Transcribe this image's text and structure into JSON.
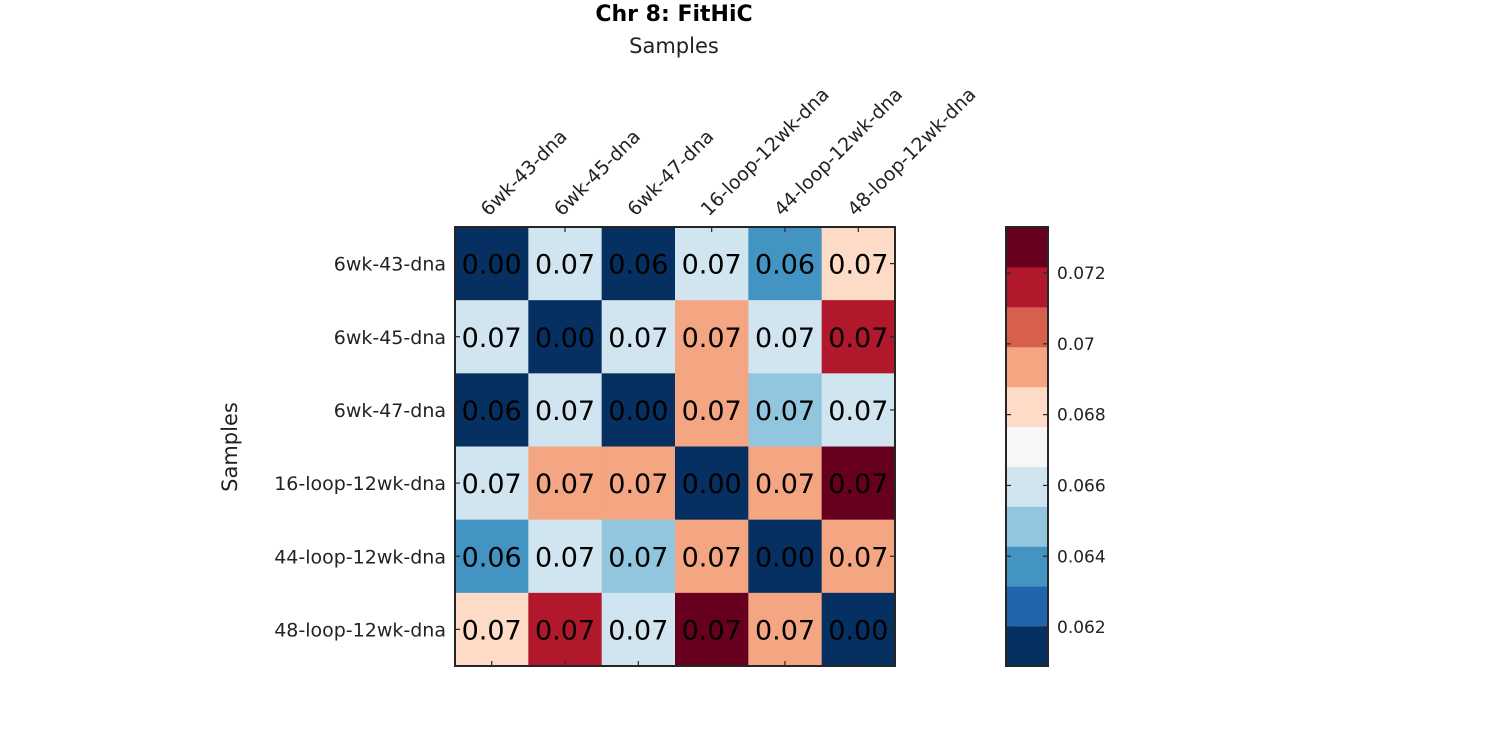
{
  "chart_data": {
    "type": "heatmap",
    "title": "Chr 8: FitHiC",
    "xlabel": "Samples",
    "ylabel": "Samples",
    "categories": [
      "6wk-43-dna",
      "6wk-45-dna",
      "6wk-47-dna",
      "16-loop-12wk-dna",
      "44-loop-12wk-dna",
      "48-loop-12wk-dna"
    ],
    "values": [
      [
        0.0,
        0.0665,
        0.061,
        0.0665,
        0.064,
        0.068
      ],
      [
        0.0665,
        0.0,
        0.066,
        0.069,
        0.066,
        0.0715
      ],
      [
        0.061,
        0.066,
        0.0,
        0.069,
        0.065,
        0.066
      ],
      [
        0.0665,
        0.069,
        0.069,
        0.0,
        0.069,
        0.073
      ],
      [
        0.064,
        0.066,
        0.065,
        0.069,
        0.0,
        0.069
      ],
      [
        0.068,
        0.0715,
        0.066,
        0.073,
        0.069,
        0.0
      ]
    ],
    "cell_labels": [
      [
        "0.00",
        "0.07",
        "0.06",
        "0.07",
        "0.06",
        "0.07"
      ],
      [
        "0.07",
        "0.00",
        "0.07",
        "0.07",
        "0.07",
        "0.07"
      ],
      [
        "0.06",
        "0.07",
        "0.00",
        "0.07",
        "0.07",
        "0.07"
      ],
      [
        "0.07",
        "0.07",
        "0.07",
        "0.00",
        "0.07",
        "0.07"
      ],
      [
        "0.06",
        "0.07",
        "0.07",
        "0.07",
        "0.00",
        "0.07"
      ],
      [
        "0.07",
        "0.07",
        "0.07",
        "0.07",
        "0.07",
        "0.00"
      ]
    ],
    "colorbar": {
      "min": 0.0609,
      "max": 0.0733,
      "ticks": [
        0.062,
        0.064,
        0.066,
        0.068,
        0.07,
        0.072
      ],
      "tick_labels": [
        "0.062",
        "0.064",
        "0.066",
        "0.068",
        "0.07",
        "0.072"
      ],
      "colors": [
        "#053061",
        "#2166ac",
        "#4393c3",
        "#92c5de",
        "#d1e5f0",
        "#f7f7f7",
        "#fddbc7",
        "#f4a582",
        "#d6604d",
        "#b2182b",
        "#67001f"
      ]
    }
  }
}
